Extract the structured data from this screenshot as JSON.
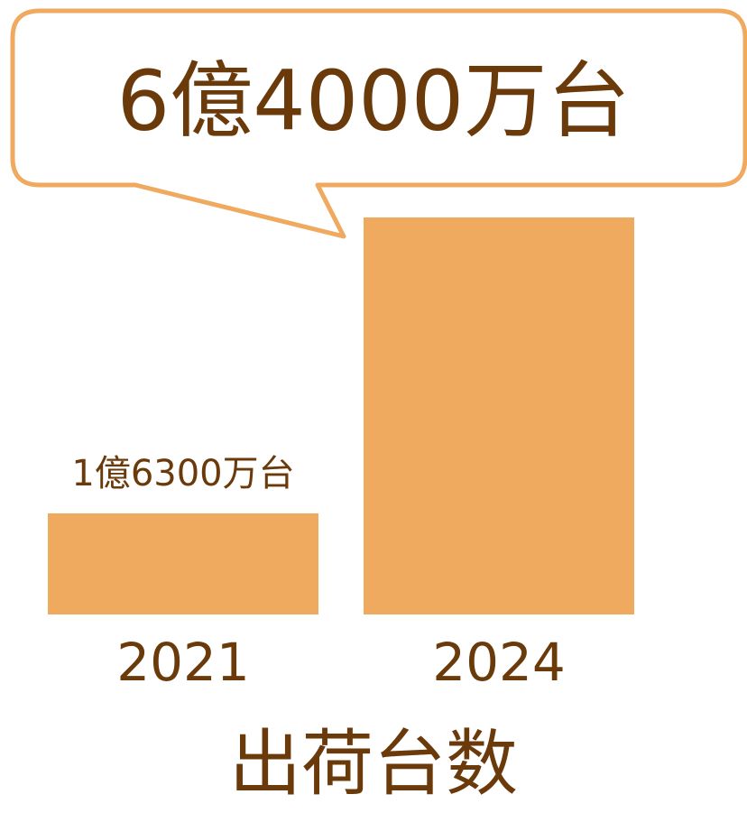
{
  "chart_data": {
    "type": "bar",
    "title": "出荷台数",
    "categories": [
      "2021",
      "2024"
    ],
    "values": [
      163000000,
      640000000
    ],
    "value_labels": [
      "1億6300万台",
      "6億4000万台"
    ],
    "color": "#efaa60"
  }
}
